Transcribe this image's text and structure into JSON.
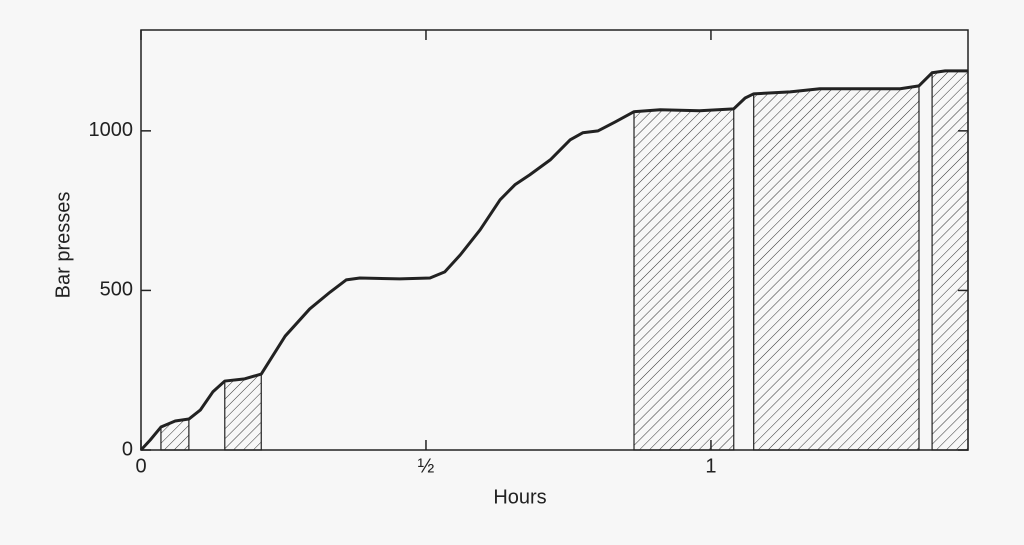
{
  "chart_data": {
    "type": "line",
    "x_label": "Hours",
    "y_label": "Bar presses",
    "xlim": [
      0,
      1.451
    ],
    "ylim": [
      0,
      1316
    ],
    "xticks": [
      0,
      {
        "value": 0.5,
        "label": "½"
      },
      1
    ],
    "yticks": [
      0,
      500,
      1000
    ],
    "color": "#222222",
    "shaded_spans": [
      [
        0.035,
        0.084
      ],
      [
        0.147,
        0.211
      ],
      [
        0.865,
        1.04
      ],
      [
        1.075,
        1.365
      ],
      [
        1.388,
        1.451
      ]
    ],
    "x": [
      0,
      0.016,
      0.035,
      0.06,
      0.084,
      0.104,
      0.126,
      0.147,
      0.182,
      0.211,
      0.253,
      0.296,
      0.332,
      0.36,
      0.384,
      0.454,
      0.507,
      0.533,
      0.56,
      0.595,
      0.63,
      0.656,
      0.682,
      0.718,
      0.753,
      0.775,
      0.802,
      0.832,
      0.865,
      0.911,
      0.98,
      1.04,
      1.06,
      1.075,
      1.139,
      1.191,
      1.332,
      1.365,
      1.388,
      1.411,
      1.451
    ],
    "values": [
      0,
      31,
      72,
      91,
      97,
      125,
      182,
      216,
      223,
      238,
      357,
      442,
      495,
      533,
      539,
      536,
      539,
      558,
      611,
      690,
      784,
      831,
      862,
      909,
      972,
      994,
      1000,
      1028,
      1060,
      1066,
      1063,
      1069,
      1103,
      1116,
      1122,
      1132,
      1132,
      1141,
      1182,
      1188,
      1188
    ]
  }
}
